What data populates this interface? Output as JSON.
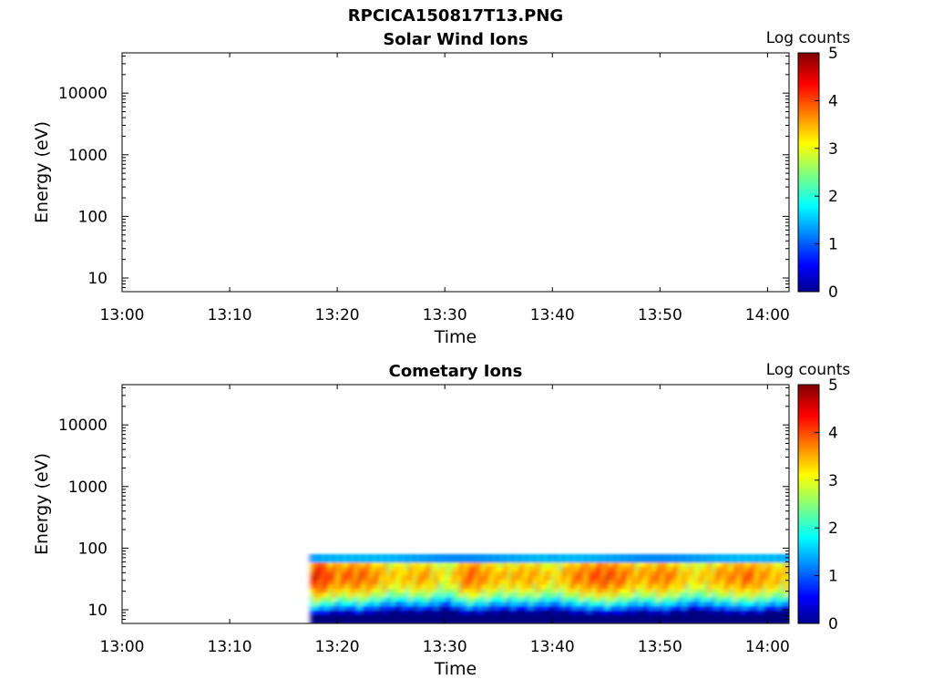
{
  "figure_title": "RPCICA150817T13.PNG",
  "chart_data": [
    {
      "type": "heatmap",
      "title": "Solar Wind Ions",
      "xlabel": "Time",
      "ylabel": "Energy (eV)",
      "y_scale": "log",
      "ylim": [
        6,
        45000
      ],
      "x_range": [
        "13:00",
        "14:02"
      ],
      "x_ticks": [
        "13:00",
        "13:10",
        "13:20",
        "13:30",
        "13:40",
        "13:50",
        "14:00"
      ],
      "y_ticks": [
        "10",
        "100",
        "1000",
        "10000"
      ],
      "y_tick_values": [
        10,
        100,
        1000,
        10000
      ],
      "colorbar": {
        "label": "Log counts",
        "ticks": [
          "0",
          "1",
          "2",
          "3",
          "4",
          "5"
        ],
        "range": [
          0,
          5
        ],
        "colormap": "jet"
      },
      "data_extent": null
    },
    {
      "type": "heatmap",
      "title": "Cometary Ions",
      "xlabel": "Time",
      "ylabel": "Energy (eV)",
      "y_scale": "log",
      "ylim": [
        6,
        45000
      ],
      "x_range": [
        "13:00",
        "14:02"
      ],
      "x_ticks": [
        "13:00",
        "13:10",
        "13:20",
        "13:30",
        "13:40",
        "13:50",
        "14:00"
      ],
      "y_ticks": [
        "10",
        "100",
        "1000",
        "10000"
      ],
      "y_tick_values": [
        10,
        100,
        1000,
        10000
      ],
      "colorbar": {
        "label": "Log counts",
        "ticks": [
          "0",
          "1",
          "2",
          "3",
          "4",
          "5"
        ],
        "range": [
          0,
          5
        ],
        "colormap": "jet"
      },
      "data_extent": {
        "time_start": "13:17:30",
        "time_end": "14:02",
        "energy_min_eV": 6,
        "energy_max_eV": 80
      },
      "approx_profile": {
        "peak_energy_eV": 35,
        "peak_log_counts_range": [
          3.5,
          4.5
        ],
        "intensity_times": [
          "13:18",
          "13:20",
          "13:22",
          "13:25",
          "13:28",
          "13:30",
          "13:32",
          "13:35",
          "13:38",
          "13:40",
          "13:42",
          "13:45",
          "13:48",
          "13:50",
          "13:53",
          "13:56",
          "13:58",
          "14:01"
        ],
        "intensity_levels": [
          4.3,
          3.8,
          4.0,
          3.3,
          3.6,
          3.0,
          4.0,
          3.4,
          3.6,
          3.2,
          3.8,
          4.1,
          3.5,
          3.9,
          3.2,
          3.7,
          3.9,
          3.4
        ]
      }
    }
  ]
}
